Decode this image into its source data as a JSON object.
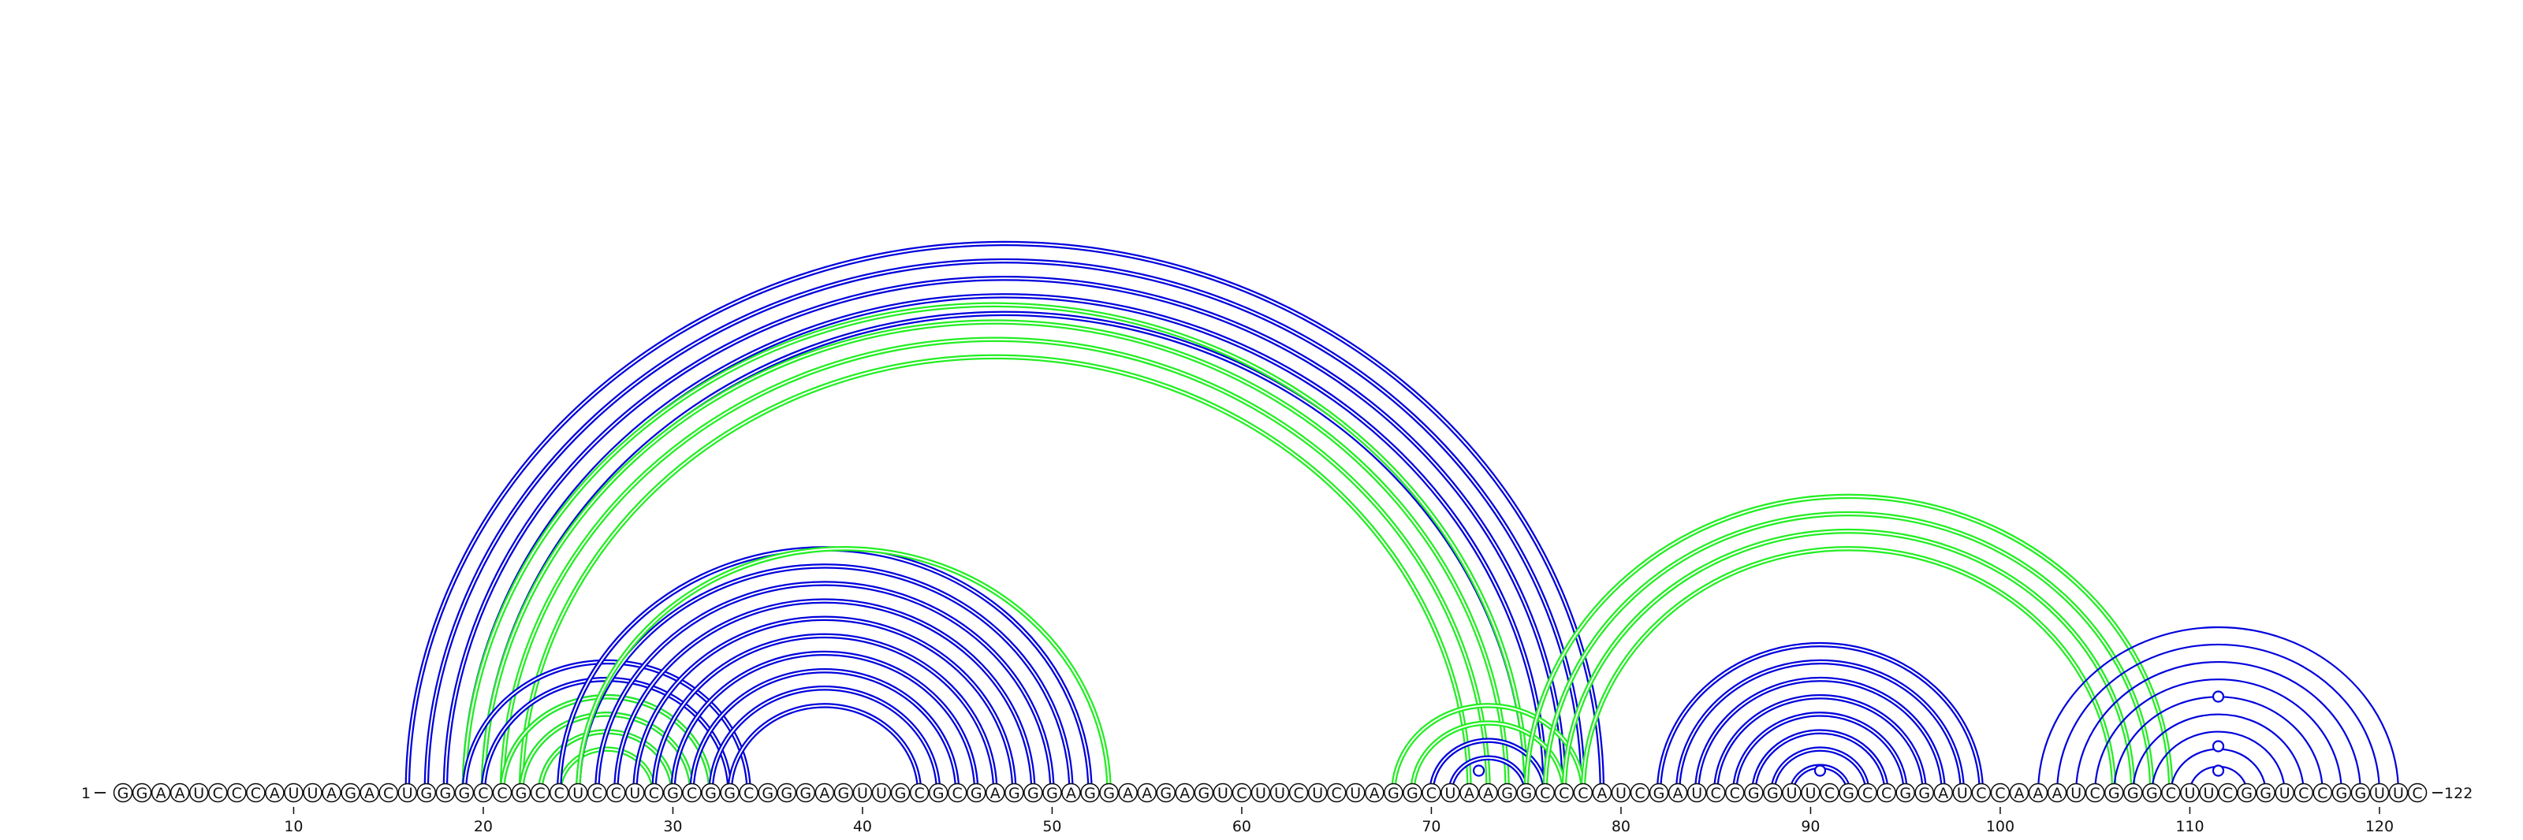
{
  "diagram": {
    "start_label": "1",
    "end_label": "122",
    "sequence": "GGAAUCCCAUUAGACUGGGCCGCCUCCUCGCGGCGGGAGUUGCGCGAGGGAGGAAGAGUCUUCUCUAGGCUAAGGCCCAUCGAUCCGGUUCGCCGGAUCCAAAUCGGGCUUCGGUCCGGUUC",
    "ticks": [
      "10",
      "20",
      "30",
      "40",
      "50",
      "60",
      "70",
      "80",
      "90",
      "100",
      "110",
      "120"
    ],
    "colors": {
      "outline": "#0b0b0b",
      "arc_blue": "#0000dd",
      "arc_green": "#22ee22",
      "node_fill": "#ffffff"
    },
    "arc_groups": [
      {
        "color": "blue",
        "style": "double",
        "pairs": [
          [
            16,
            79
          ],
          [
            17,
            78
          ],
          [
            18,
            77
          ],
          [
            19,
            76
          ],
          [
            20,
            75
          ]
        ]
      },
      {
        "color": "green",
        "style": "double",
        "pairs": [
          [
            19,
            75
          ],
          [
            20,
            74
          ],
          [
            21,
            73
          ],
          [
            22,
            72
          ]
        ]
      },
      {
        "color": "blue",
        "style": "double",
        "pairs": [
          [
            19,
            34
          ],
          [
            20,
            33
          ],
          [
            21,
            32
          ],
          [
            22,
            31
          ],
          [
            23,
            30
          ]
        ]
      },
      {
        "color": "green",
        "style": "double",
        "pairs": [
          [
            21,
            32
          ],
          [
            22,
            31
          ],
          [
            23,
            30
          ],
          [
            24,
            29
          ]
        ]
      },
      {
        "color": "blue",
        "style": "double",
        "pairs": [
          [
            24,
            52
          ],
          [
            25,
            51
          ],
          [
            26,
            50
          ],
          [
            27,
            49
          ],
          [
            28,
            48
          ],
          [
            29,
            47
          ],
          [
            30,
            46
          ],
          [
            31,
            45
          ],
          [
            32,
            44
          ],
          [
            33,
            43
          ]
        ]
      },
      {
        "color": "green",
        "style": "double",
        "pairs": [
          [
            25,
            53
          ]
        ]
      },
      {
        "color": "green",
        "style": "double",
        "pairs": [
          [
            68,
            78
          ],
          [
            69,
            77
          ]
        ]
      },
      {
        "color": "blue",
        "style": "double",
        "pairs": [
          [
            70,
            76
          ],
          [
            71,
            75
          ]
        ]
      },
      {
        "color": "green",
        "style": "double",
        "pairs": [
          [
            75,
            109
          ],
          [
            76,
            108
          ],
          [
            77,
            107
          ],
          [
            78,
            106
          ]
        ]
      },
      {
        "color": "blue",
        "style": "double",
        "pairs": [
          [
            82,
            99
          ],
          [
            83,
            98
          ],
          [
            84,
            97
          ],
          [
            85,
            96
          ],
          [
            86,
            95
          ],
          [
            87,
            94
          ],
          [
            88,
            93
          ],
          [
            89,
            92
          ]
        ]
      },
      {
        "color": "blue",
        "style": "single",
        "pairs": [
          [
            102,
            121
          ],
          [
            103,
            120
          ],
          [
            104,
            119
          ],
          [
            105,
            118
          ],
          [
            106,
            117
          ],
          [
            107,
            116
          ],
          [
            108,
            115
          ],
          [
            109,
            114
          ],
          [
            110,
            113
          ]
        ]
      }
    ],
    "loop_markers": [
      72.5,
      90.5,
      111.5,
      111.5,
      111.5
    ]
  }
}
